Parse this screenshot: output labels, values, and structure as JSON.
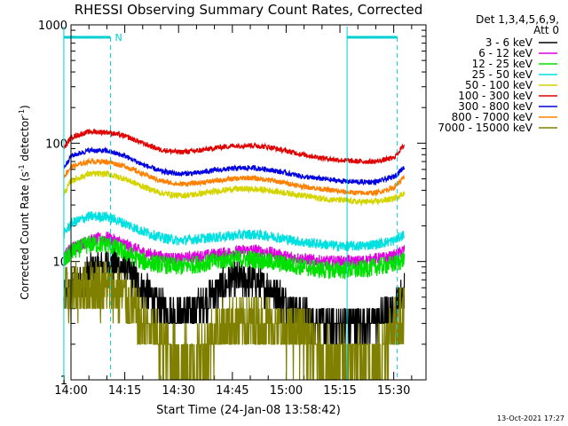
{
  "chart_data": {
    "type": "line",
    "title": "RHESSI Observing Summary Count Rates, Corrected",
    "xlabel": "Start Time (24-Jan-08 13:58:42)",
    "ylabel_main": "Corrected Count Rate (s",
    "ylabel_sup1": "-1",
    "ylabel_mid": " detector",
    "ylabel_sup2": "-1",
    "ylabel_end": ")",
    "yscale": "log",
    "ylim": [
      1,
      1000
    ],
    "xlim_min": [
      0,
      99
    ],
    "x_unit": "minutes after 14:00",
    "x_ticks": [
      {
        "min": 0,
        "label": "14:00"
      },
      {
        "min": 15,
        "label": "14:15"
      },
      {
        "min": 30,
        "label": "14:30"
      },
      {
        "min": 45,
        "label": "14:45"
      },
      {
        "min": 60,
        "label": "15:00"
      },
      {
        "min": 75,
        "label": "15:15"
      },
      {
        "min": 90,
        "label": "15:30"
      }
    ],
    "y_ticks": [
      {
        "v": 1,
        "label": "1"
      },
      {
        "v": 10,
        "label": "10"
      },
      {
        "v": 100,
        "label": "100"
      },
      {
        "v": 1000,
        "label": "1000"
      }
    ],
    "legend_header": [
      "Det 1,3,4,5,6,9,",
      "Att 0"
    ],
    "legend_position": "right",
    "annotation_N": "N",
    "footer_date": "13-Oct-2021 17:27",
    "x_min": [
      -2,
      0,
      5,
      10,
      15,
      20,
      25,
      30,
      35,
      40,
      45,
      50,
      55,
      60,
      65,
      70,
      75,
      80,
      85,
      90,
      93
    ],
    "series": [
      {
        "name": "3 - 6 keV",
        "color": "#000000",
        "noise": 0.35,
        "values": [
          4.5,
          6,
          8,
          9.5,
          9,
          6,
          4,
          3.5,
          4,
          5.5,
          7,
          7,
          6,
          4.5,
          3.5,
          3,
          3,
          3,
          3.2,
          4,
          6
        ]
      },
      {
        "name": "6 - 12 keV",
        "color": "#e000e0",
        "noise": 0.12,
        "values": [
          11,
          13,
          15,
          16,
          14,
          12,
          11,
          10.5,
          11,
          11.5,
          12,
          12.5,
          12,
          11,
          10.5,
          10,
          10,
          10,
          10.5,
          11,
          12.5
        ]
      },
      {
        "name": "12 - 25 keV",
        "color": "#00e000",
        "noise": 0.18,
        "values": [
          10,
          12,
          14,
          14,
          12,
          10,
          9.5,
          9,
          9.5,
          10,
          10.5,
          10.5,
          10,
          9.5,
          9,
          8.5,
          8.5,
          8.5,
          9,
          9.5,
          10.5
        ]
      },
      {
        "name": "25 - 50 keV",
        "color": "#00e0e0",
        "noise": 0.1,
        "values": [
          17,
          21,
          24,
          24,
          21,
          18,
          16,
          15,
          15.5,
          16,
          16.5,
          17,
          16.5,
          15.5,
          14.5,
          14,
          13.5,
          13.5,
          14,
          15,
          17
        ]
      },
      {
        "name": "50 - 100 keV",
        "color": "#d4d400",
        "noise": 0.06,
        "values": [
          37,
          48,
          55,
          55,
          50,
          43,
          38,
          36,
          37,
          39,
          41,
          41,
          40,
          38,
          36,
          34,
          33,
          32,
          32,
          34,
          38
        ]
      },
      {
        "name": "100 - 300 keV",
        "color": "#e00000",
        "noise": 0.05,
        "values": [
          90,
          112,
          125,
          124,
          115,
          100,
          88,
          84,
          86,
          91,
          95,
          96,
          93,
          86,
          80,
          75,
          72,
          70,
          70,
          75,
          97
        ]
      },
      {
        "name": "300 - 800 keV",
        "color": "#0000e0",
        "noise": 0.05,
        "values": [
          62,
          78,
          87,
          86,
          78,
          66,
          58,
          55,
          56,
          59,
          61,
          62,
          60,
          56,
          52,
          50,
          48,
          47,
          47,
          52,
          63
        ]
      },
      {
        "name": "800 - 7000 keV",
        "color": "#ff8000",
        "noise": 0.05,
        "values": [
          52,
          63,
          70,
          70,
          64,
          55,
          48,
          45,
          46,
          48,
          50,
          51,
          49,
          46,
          43,
          41,
          39,
          38,
          38,
          42,
          52
        ]
      },
      {
        "name": "7000 - 15000 keV",
        "color": "#808000",
        "noise": 0.55,
        "values": [
          5,
          5.5,
          6,
          6,
          5,
          3,
          2,
          1.5,
          1.5,
          2.5,
          3,
          3,
          3,
          2.5,
          2.5,
          1.5,
          1.5,
          1.5,
          1.5,
          3,
          4
        ]
      }
    ],
    "observing_markers": [
      {
        "type": "attenuator_period",
        "color": "#00d0d0",
        "from_min": -2,
        "to_min": 11
      },
      {
        "type": "attenuator_period",
        "color": "#00d0d0",
        "from_min": 77,
        "to_min": 91
      }
    ]
  }
}
